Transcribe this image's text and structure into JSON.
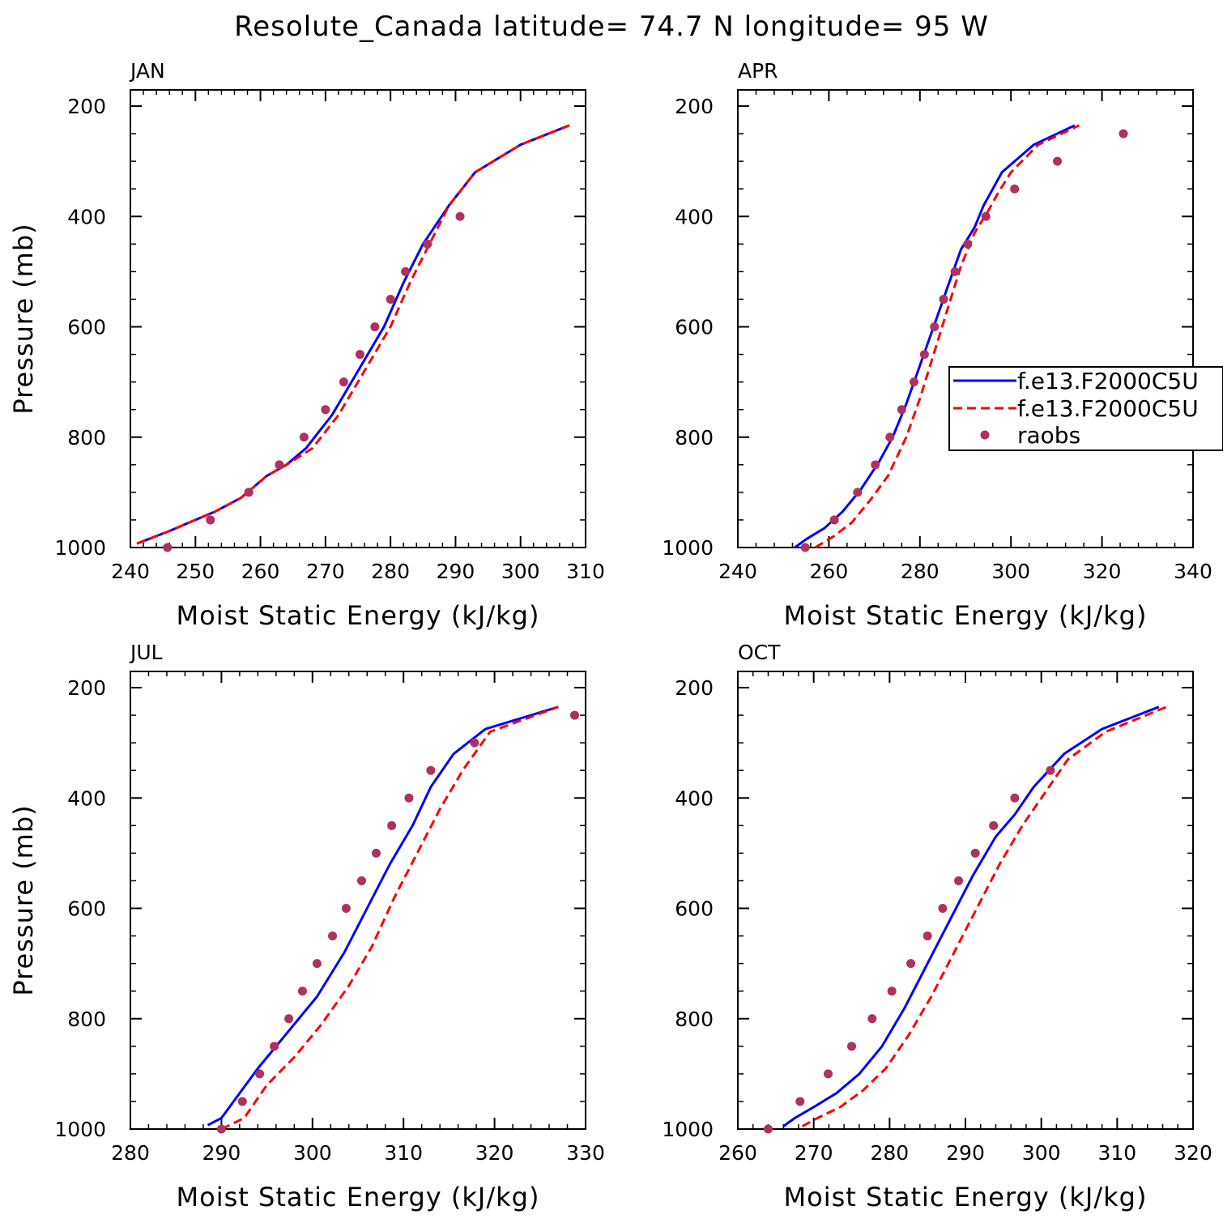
{
  "title": "Resolute_Canada  latitude= 74.7 N longitude= 95 W",
  "colors": {
    "model_a": "#0000ff",
    "model_b": "#ff0000",
    "raobs": "#b03060"
  },
  "legend": {
    "placement": "right of APR panel",
    "entries": [
      {
        "label": "f.e13.F2000C5U",
        "style": "solid",
        "color": "#0000ff"
      },
      {
        "label": "f.e13.F2000C5U",
        "style": "dashed",
        "color": "#ff0000"
      },
      {
        "label": "raobs",
        "style": "marker",
        "color": "#b03060"
      }
    ]
  },
  "chart_data": [
    {
      "type": "line",
      "panel_label": "JAN",
      "xlabel": "Moist Static Energy (kJ/kg)",
      "ylabel": "Pressure (mb)",
      "xlim": [
        240,
        310
      ],
      "xticks": [
        240,
        250,
        260,
        270,
        280,
        290,
        300,
        310
      ],
      "ylim": [
        1000,
        200
      ],
      "yticks": [
        200,
        400,
        600,
        800,
        1000
      ],
      "series": [
        {
          "name": "f.e13.F2000C5U",
          "style": "solid",
          "color": "#0000ff",
          "x": [
            241,
            246,
            249,
            253,
            257,
            261,
            264,
            267,
            271,
            275,
            279,
            282,
            285,
            289,
            293,
            300,
            307.5
          ],
          "y": [
            993,
            970,
            955,
            935,
            910,
            870,
            850,
            820,
            760,
            680,
            600,
            520,
            450,
            380,
            320,
            270,
            235
          ]
        },
        {
          "name": "f.e13.F2000C5U",
          "style": "dashed",
          "color": "#ff0000",
          "x": [
            241,
            246,
            249,
            253,
            257,
            261,
            264,
            268,
            272,
            276,
            280,
            283,
            286,
            289,
            293,
            300,
            307.5
          ],
          "y": [
            993,
            970,
            955,
            935,
            910,
            870,
            850,
            820,
            760,
            680,
            600,
            520,
            450,
            380,
            320,
            270,
            235
          ]
        },
        {
          "name": "raobs",
          "style": "marker",
          "color": "#b03060",
          "x": [
            245.7,
            252.3,
            258.2,
            262.9,
            266.7,
            270.0,
            272.8,
            275.3,
            277.6,
            280.0,
            282.3,
            285.7,
            290.7
          ],
          "y": [
            1000,
            950,
            900,
            850,
            800,
            750,
            700,
            650,
            600,
            550,
            500,
            450,
            400
          ]
        }
      ]
    },
    {
      "type": "line",
      "panel_label": "APR",
      "xlabel": "Moist Static Energy (kJ/kg)",
      "ylabel": "",
      "xlim": [
        240,
        340
      ],
      "xticks": [
        240,
        260,
        280,
        300,
        320,
        340
      ],
      "ylim": [
        1000,
        200
      ],
      "yticks": [
        200,
        400,
        600,
        800,
        1000
      ],
      "series": [
        {
          "name": "f.e13.F2000C5U",
          "style": "solid",
          "color": "#0000ff",
          "x": [
            252.5,
            255,
            259,
            263,
            267,
            271,
            274,
            277,
            280,
            283,
            286,
            289,
            292,
            294,
            298,
            305,
            314
          ],
          "y": [
            1000,
            985,
            965,
            935,
            895,
            845,
            800,
            740,
            670,
            600,
            530,
            460,
            420,
            380,
            320,
            270,
            235
          ]
        },
        {
          "name": "f.e13.F2000C5U",
          "style": "dashed",
          "color": "#ff0000",
          "x": [
            257,
            261,
            265,
            269,
            273,
            277,
            280,
            283,
            286,
            289,
            292,
            295,
            297,
            300,
            306,
            315
          ],
          "y": [
            1000,
            980,
            955,
            915,
            870,
            800,
            730,
            650,
            570,
            490,
            430,
            390,
            360,
            320,
            270,
            235
          ]
        },
        {
          "name": "raobs",
          "style": "marker",
          "color": "#b03060",
          "x": [
            254.8,
            261.2,
            266.3,
            270.2,
            273.4,
            276.0,
            278.7,
            281.0,
            283.2,
            285.2,
            287.7,
            290.5,
            294.5,
            300.8,
            310.2,
            324.7
          ],
          "y": [
            1000,
            950,
            900,
            850,
            800,
            750,
            700,
            650,
            600,
            550,
            500,
            450,
            400,
            350,
            300,
            250
          ]
        }
      ]
    },
    {
      "type": "line",
      "panel_label": "JUL",
      "xlabel": "Moist Static Energy (kJ/kg)",
      "ylabel": "Pressure (mb)",
      "xlim": [
        280,
        330
      ],
      "xticks": [
        280,
        290,
        300,
        310,
        320,
        330
      ],
      "ylim": [
        1000,
        200
      ],
      "yticks": [
        200,
        400,
        600,
        800,
        1000
      ],
      "series": [
        {
          "name": "f.e13.F2000C5U",
          "style": "solid",
          "color": "#0000ff",
          "x": [
            288.5,
            290,
            292,
            294,
            297,
            300.5,
            303.5,
            306,
            308.5,
            311,
            313,
            315.5,
            319,
            327
          ],
          "y": [
            993,
            980,
            935,
            890,
            830,
            760,
            680,
            600,
            520,
            450,
            380,
            320,
            275,
            235
          ]
        },
        {
          "name": "f.e13.F2000C5U",
          "style": "dashed",
          "color": "#ff0000",
          "x": [
            290,
            292.5,
            295,
            298,
            301,
            304,
            306.5,
            309,
            311.5,
            314,
            316.5,
            319.5,
            327
          ],
          "y": [
            1000,
            980,
            920,
            870,
            810,
            740,
            670,
            580,
            500,
            420,
            350,
            280,
            235
          ]
        },
        {
          "name": "raobs",
          "style": "marker",
          "color": "#b03060",
          "x": [
            290.0,
            292.3,
            294.2,
            295.8,
            297.4,
            298.9,
            300.5,
            302.2,
            303.7,
            305.4,
            307.0,
            308.7,
            310.6,
            313.0,
            317.8,
            328.8
          ],
          "y": [
            1000,
            950,
            900,
            850,
            800,
            750,
            700,
            650,
            600,
            550,
            500,
            450,
            400,
            350,
            300,
            250
          ]
        }
      ]
    },
    {
      "type": "line",
      "panel_label": "OCT",
      "xlabel": "Moist Static Energy (kJ/kg)",
      "ylabel": "",
      "xlim": [
        260,
        320
      ],
      "xticks": [
        260,
        270,
        280,
        290,
        300,
        310,
        320
      ],
      "ylim": [
        1000,
        200
      ],
      "yticks": [
        200,
        400,
        600,
        800,
        1000
      ],
      "series": [
        {
          "name": "f.e13.F2000C5U",
          "style": "solid",
          "color": "#0000ff",
          "x": [
            266,
            267.5,
            270,
            273,
            276,
            279,
            282,
            285,
            288,
            291,
            294,
            296.5,
            299,
            303,
            308,
            315.5
          ],
          "y": [
            995,
            980,
            960,
            935,
            900,
            850,
            780,
            700,
            620,
            540,
            470,
            430,
            380,
            320,
            275,
            235
          ]
        },
        {
          "name": "f.e13.F2000C5U",
          "style": "dashed",
          "color": "#ff0000",
          "x": [
            268.5,
            270.5,
            273.5,
            276.5,
            279.5,
            282.5,
            285.5,
            288.5,
            291.5,
            294.5,
            297.5,
            300,
            303.5,
            308.5,
            316.5
          ],
          "y": [
            995,
            980,
            960,
            930,
            890,
            830,
            760,
            680,
            600,
            520,
            450,
            400,
            330,
            280,
            235
          ]
        },
        {
          "name": "raobs",
          "style": "marker",
          "color": "#b03060",
          "x": [
            264.0,
            268.2,
            271.9,
            275.0,
            277.7,
            280.3,
            282.8,
            285.0,
            287.0,
            289.1,
            291.3,
            293.7,
            296.5,
            301.2
          ],
          "y": [
            1000,
            950,
            900,
            850,
            800,
            750,
            700,
            650,
            600,
            550,
            500,
            450,
            400,
            350
          ]
        }
      ]
    }
  ]
}
